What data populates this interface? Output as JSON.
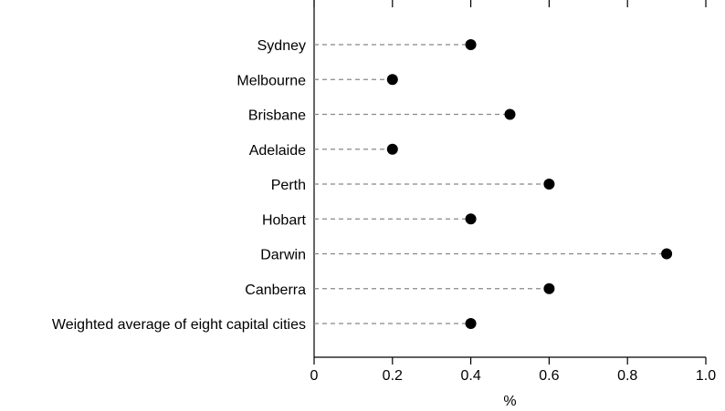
{
  "chart_data": {
    "type": "scatter",
    "orientation": "horizontal",
    "categories": [
      "Sydney",
      "Melbourne",
      "Brisbane",
      "Adelaide",
      "Perth",
      "Hobart",
      "Darwin",
      "Canberra",
      "Weighted average of eight capital cities"
    ],
    "values": [
      0.4,
      0.2,
      0.5,
      0.2,
      0.6,
      0.4,
      0.9,
      0.6,
      0.4
    ],
    "title": "",
    "xlabel": "%",
    "ylabel": "",
    "xlim": [
      0,
      1.0
    ],
    "xticks": [
      "0",
      "0.2",
      "0.4",
      "0.6",
      "0.8",
      "1.0"
    ],
    "grid": false,
    "connector_lines": "dashed",
    "colors": {
      "marker": "#000000",
      "connector": "#888888",
      "axis": "#000000"
    }
  }
}
